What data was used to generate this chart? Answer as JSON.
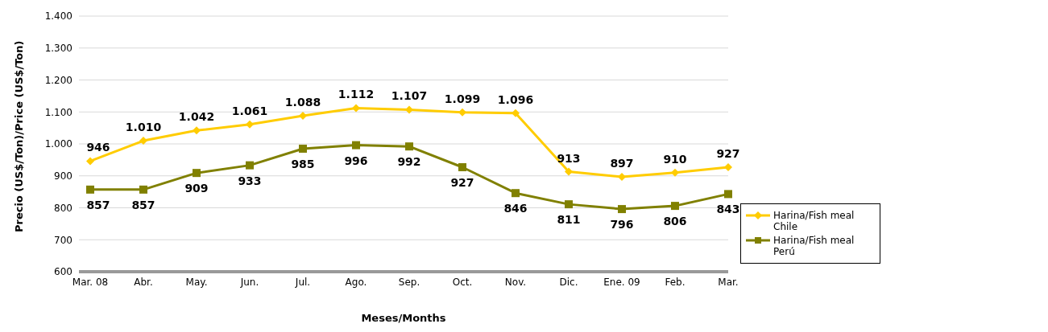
{
  "chart_data": {
    "type": "line",
    "xlabel": "Meses/Months",
    "ylabel": "Precio (US$/Ton)/Price (US$/Ton)",
    "categories": [
      "Mar. 08",
      "Abr.",
      "May.",
      "Jun.",
      "Jul.",
      "Ago.",
      "Sep.",
      "Oct.",
      "Nov.",
      "Dic.",
      "Ene. 09",
      "Feb.",
      "Mar."
    ],
    "series": [
      {
        "name": "Harina/Fish meal Chile",
        "color": "#ffcc00",
        "marker": "diamond",
        "values": [
          946,
          1010,
          1042,
          1061,
          1088,
          1112,
          1107,
          1099,
          1096,
          913,
          897,
          910,
          927
        ],
        "value_labels": [
          "946",
          "1.010",
          "1.042",
          "1.061",
          "1.088",
          "1.112",
          "1.107",
          "1.099",
          "1.096",
          "913",
          "897",
          "910",
          "927"
        ]
      },
      {
        "name": "Harina/Fish meal Perú",
        "color": "#808000",
        "marker": "square",
        "values": [
          857,
          857,
          909,
          933,
          985,
          996,
          992,
          927,
          846,
          811,
          796,
          806,
          843
        ],
        "value_labels": [
          "857",
          "857",
          "909",
          "933",
          "985",
          "996",
          "992",
          "927",
          "846",
          "811",
          "796",
          "806",
          "843"
        ]
      }
    ],
    "ylim": [
      600,
      1400
    ],
    "yticks": [
      600,
      700,
      800,
      900,
      {
        "value": 1000,
        "label": "1.000"
      },
      {
        "value": 1100,
        "label": "1.100"
      },
      {
        "value": 1200,
        "label": "1.200"
      },
      {
        "value": 1300,
        "label": "1.300"
      },
      {
        "value": 1400,
        "label": "1.400"
      }
    ],
    "grid": "y",
    "legend": "right",
    "line_style": "solid"
  }
}
